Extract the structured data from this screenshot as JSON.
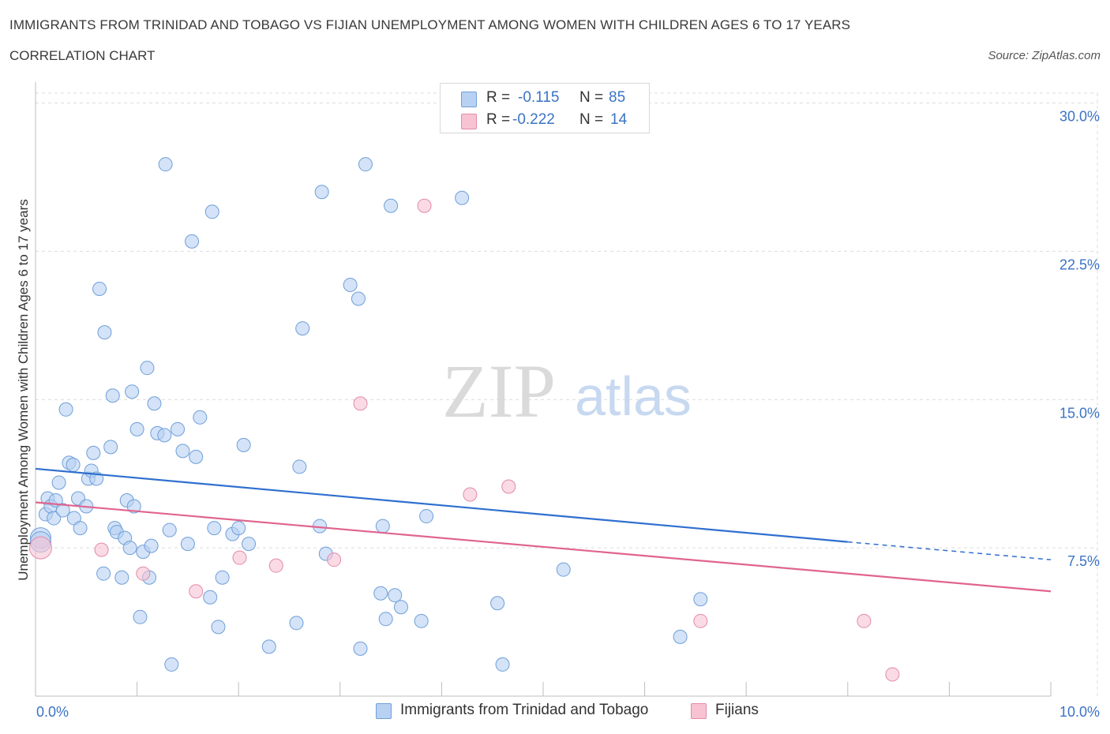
{
  "header": {
    "title": "IMMIGRANTS FROM TRINIDAD AND TOBAGO VS FIJIAN UNEMPLOYMENT AMONG WOMEN WITH CHILDREN AGES 6 TO 17 YEARS",
    "subtitle": "CORRELATION CHART",
    "source": "Source: ZipAtlas.com"
  },
  "legend": {
    "r_label": "R =",
    "n_label": "N =",
    "series": [
      {
        "r": "-0.115",
        "n": "85"
      },
      {
        "r": "-0.222",
        "n": "14"
      }
    ]
  },
  "watermark": {
    "zip": "ZIP",
    "atlas": "atlas"
  },
  "colors": {
    "blue_fill": "#b8d1f3",
    "blue_stroke": "#6f9fd8",
    "blue_line": "#2f6fcf",
    "pink_fill": "#f7c3d3",
    "pink_stroke": "#e48aa8",
    "pink_line": "#e0648f",
    "tick_label": "#3a73c4",
    "grid": "#dcdcdc"
  },
  "chart_data": {
    "type": "scatter",
    "xlabel": "",
    "ylabel": "Unemployment Among Women with Children Ages 6 to 17 years",
    "x_tick_labels": [
      "0.0%",
      "10.0%"
    ],
    "y_tick_labels": [
      "7.5%",
      "15.0%",
      "22.5%",
      "30.0%"
    ],
    "y_ticks": [
      7.5,
      15.0,
      22.5,
      30.0
    ],
    "xlim": [
      0,
      10
    ],
    "ylim": [
      0,
      30.5
    ],
    "grid": true,
    "legend_placement": "bottom-center",
    "series": [
      {
        "name": "Immigrants from Trinidad and Tobago",
        "color": "#b8d1f3",
        "points": [
          [
            0.05,
            8.0
          ],
          [
            0.05,
            7.8
          ],
          [
            0.1,
            9.2
          ],
          [
            0.12,
            10.0
          ],
          [
            0.15,
            9.6
          ],
          [
            0.18,
            9.0
          ],
          [
            0.2,
            9.9
          ],
          [
            0.23,
            10.8
          ],
          [
            0.27,
            9.4
          ],
          [
            0.3,
            14.5
          ],
          [
            0.33,
            11.8
          ],
          [
            0.37,
            11.7
          ],
          [
            0.38,
            9.0
          ],
          [
            0.42,
            10.0
          ],
          [
            0.44,
            8.5
          ],
          [
            0.5,
            9.6
          ],
          [
            0.52,
            11.0
          ],
          [
            0.55,
            11.4
          ],
          [
            0.57,
            12.3
          ],
          [
            0.6,
            11.0
          ],
          [
            0.63,
            20.6
          ],
          [
            0.67,
            6.2
          ],
          [
            0.68,
            18.4
          ],
          [
            0.74,
            12.6
          ],
          [
            0.76,
            15.2
          ],
          [
            0.78,
            8.5
          ],
          [
            0.8,
            8.3
          ],
          [
            0.85,
            6.0
          ],
          [
            0.88,
            8.0
          ],
          [
            0.9,
            9.9
          ],
          [
            0.93,
            7.5
          ],
          [
            0.95,
            15.4
          ],
          [
            0.97,
            9.6
          ],
          [
            1.0,
            13.5
          ],
          [
            1.06,
            7.3
          ],
          [
            1.1,
            16.6
          ],
          [
            1.12,
            6.0
          ],
          [
            1.14,
            7.6
          ],
          [
            1.17,
            14.8
          ],
          [
            1.2,
            13.3
          ],
          [
            1.27,
            13.2
          ],
          [
            1.28,
            26.9
          ],
          [
            1.32,
            8.4
          ],
          [
            1.4,
            13.5
          ],
          [
            1.45,
            12.4
          ],
          [
            1.5,
            7.7
          ],
          [
            1.54,
            23.0
          ],
          [
            1.58,
            12.1
          ],
          [
            1.62,
            14.1
          ],
          [
            1.72,
            5.0
          ],
          [
            1.74,
            24.5
          ],
          [
            1.76,
            8.5
          ],
          [
            1.8,
            3.5
          ],
          [
            1.84,
            6.0
          ],
          [
            1.94,
            8.2
          ],
          [
            2.0,
            8.5
          ],
          [
            2.05,
            12.7
          ],
          [
            2.1,
            7.7
          ],
          [
            2.3,
            2.5
          ],
          [
            2.57,
            3.7
          ],
          [
            2.6,
            11.6
          ],
          [
            2.63,
            18.6
          ],
          [
            2.8,
            8.6
          ],
          [
            2.82,
            25.5
          ],
          [
            2.86,
            7.2
          ],
          [
            3.1,
            20.8
          ],
          [
            3.18,
            20.1
          ],
          [
            3.2,
            2.4
          ],
          [
            3.25,
            26.9
          ],
          [
            3.4,
            5.2
          ],
          [
            3.42,
            8.6
          ],
          [
            3.45,
            3.9
          ],
          [
            3.5,
            24.8
          ],
          [
            3.54,
            5.1
          ],
          [
            3.6,
            4.5
          ],
          [
            3.8,
            3.8
          ],
          [
            3.85,
            9.1
          ],
          [
            4.2,
            25.2
          ],
          [
            4.55,
            4.7
          ],
          [
            4.6,
            1.6
          ],
          [
            5.2,
            6.4
          ],
          [
            6.35,
            3.0
          ],
          [
            6.55,
            4.9
          ],
          [
            1.34,
            1.6
          ],
          [
            1.03,
            4.0
          ]
        ]
      },
      {
        "name": "Fijians",
        "color": "#f7c3d3",
        "points": [
          [
            0.05,
            7.5
          ],
          [
            0.65,
            7.4
          ],
          [
            1.06,
            6.2
          ],
          [
            1.58,
            5.3
          ],
          [
            2.01,
            7.0
          ],
          [
            2.37,
            6.6
          ],
          [
            2.94,
            6.9
          ],
          [
            3.2,
            14.8
          ],
          [
            3.83,
            24.8
          ],
          [
            4.28,
            10.2
          ],
          [
            4.66,
            10.6
          ],
          [
            6.55,
            3.8
          ],
          [
            8.16,
            3.8
          ],
          [
            8.44,
            1.1
          ]
        ]
      }
    ],
    "trendlines": [
      {
        "name": "Immigrants from Trinidad and Tobago",
        "x": [
          0,
          8.0
        ],
        "y": [
          11.5,
          7.8
        ],
        "dashed_to": [
          10.0,
          6.9
        ]
      },
      {
        "name": "Fijians",
        "x": [
          0,
          10.0
        ],
        "y": [
          9.8,
          5.3
        ]
      }
    ]
  }
}
